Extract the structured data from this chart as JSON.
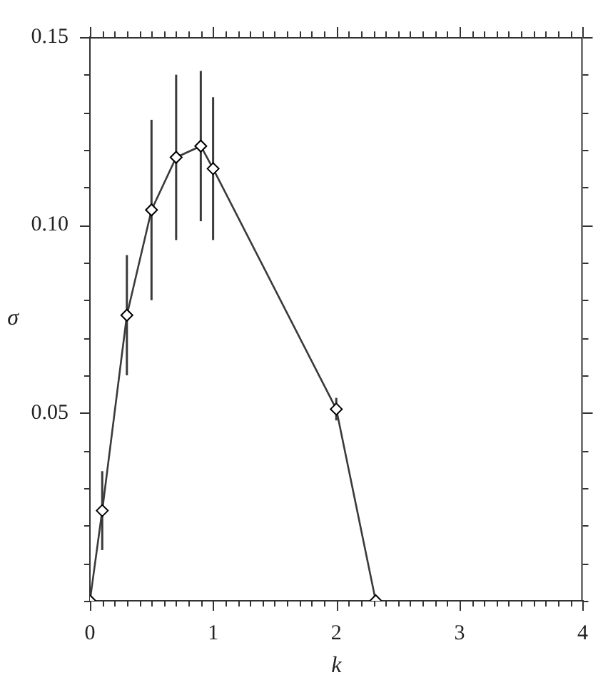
{
  "chart_data": {
    "type": "line",
    "xlabel": "k",
    "ylabel": "σ",
    "x": [
      0,
      0.1,
      0.3,
      0.5,
      0.7,
      0.9,
      1.0,
      2.0,
      2.32
    ],
    "series": [
      {
        "color": "#3a3a3a",
        "values": [
          0,
          0.024,
          0.076,
          0.104,
          0.118,
          0.121,
          0.115,
          0.051,
          0
        ],
        "errors": [
          null,
          0.0105,
          0.016,
          0.024,
          0.022,
          0.02,
          0.019,
          0.003,
          null
        ]
      }
    ],
    "xlim": [
      0,
      4
    ],
    "xticks": [
      0,
      {
        "value": 0.1,
        "label": null
      },
      {
        "value": 0.2,
        "label": null
      },
      {
        "value": 0.3,
        "label": null
      },
      {
        "value": 0.4,
        "label": null
      },
      {
        "value": 0.5,
        "label": null
      },
      {
        "value": 0.6,
        "label": null
      },
      {
        "value": 0.7,
        "label": null
      },
      {
        "value": 0.8,
        "label": null
      },
      {
        "value": 0.9,
        "label": null
      },
      1,
      {
        "value": 1.1,
        "label": null
      },
      {
        "value": 1.2,
        "label": null
      },
      {
        "value": 1.3,
        "label": null
      },
      {
        "value": 1.4,
        "label": null
      },
      {
        "value": 1.5,
        "label": null
      },
      {
        "value": 1.6,
        "label": null
      },
      {
        "value": 1.7,
        "label": null
      },
      {
        "value": 1.8,
        "label": null
      },
      {
        "value": 1.9,
        "label": null
      },
      2,
      {
        "value": 2.1,
        "label": null
      },
      {
        "value": 2.2,
        "label": null
      },
      {
        "value": 2.3,
        "label": null
      },
      {
        "value": 2.4,
        "label": null
      },
      {
        "value": 2.5,
        "label": null
      },
      {
        "value": 2.6,
        "label": null
      },
      {
        "value": 2.7,
        "label": null
      },
      {
        "value": 2.8,
        "label": null
      },
      {
        "value": 2.9,
        "label": null
      },
      3,
      {
        "value": 3.1,
        "label": null
      },
      {
        "value": 3.2,
        "label": null
      },
      {
        "value": 3.3,
        "label": null
      },
      {
        "value": 3.4,
        "label": null
      },
      {
        "value": 3.5,
        "label": null
      },
      {
        "value": 3.6,
        "label": null
      },
      {
        "value": 3.7,
        "label": null
      },
      {
        "value": 3.8,
        "label": null
      },
      {
        "value": 3.9,
        "label": null
      },
      4
    ],
    "ylim": [
      0,
      0.15
    ],
    "yticks": [
      {
        "value": 0,
        "label": null
      },
      {
        "value": 0.01,
        "label": null
      },
      {
        "value": 0.02,
        "label": null
      },
      {
        "value": 0.03,
        "label": null
      },
      {
        "value": 0.04,
        "label": null
      },
      0.05,
      {
        "value": 0.06,
        "label": null
      },
      {
        "value": 0.07,
        "label": null
      },
      {
        "value": 0.08,
        "label": null
      },
      {
        "value": 0.09,
        "label": null
      },
      {
        "value": 0.1,
        "label": "0.10"
      },
      {
        "value": 0.11,
        "label": null
      },
      {
        "value": 0.12,
        "label": null
      },
      {
        "value": 0.13,
        "label": null
      },
      {
        "value": 0.14,
        "label": null
      },
      0.15
    ],
    "marker": "diamond",
    "line_style": "solid"
  }
}
